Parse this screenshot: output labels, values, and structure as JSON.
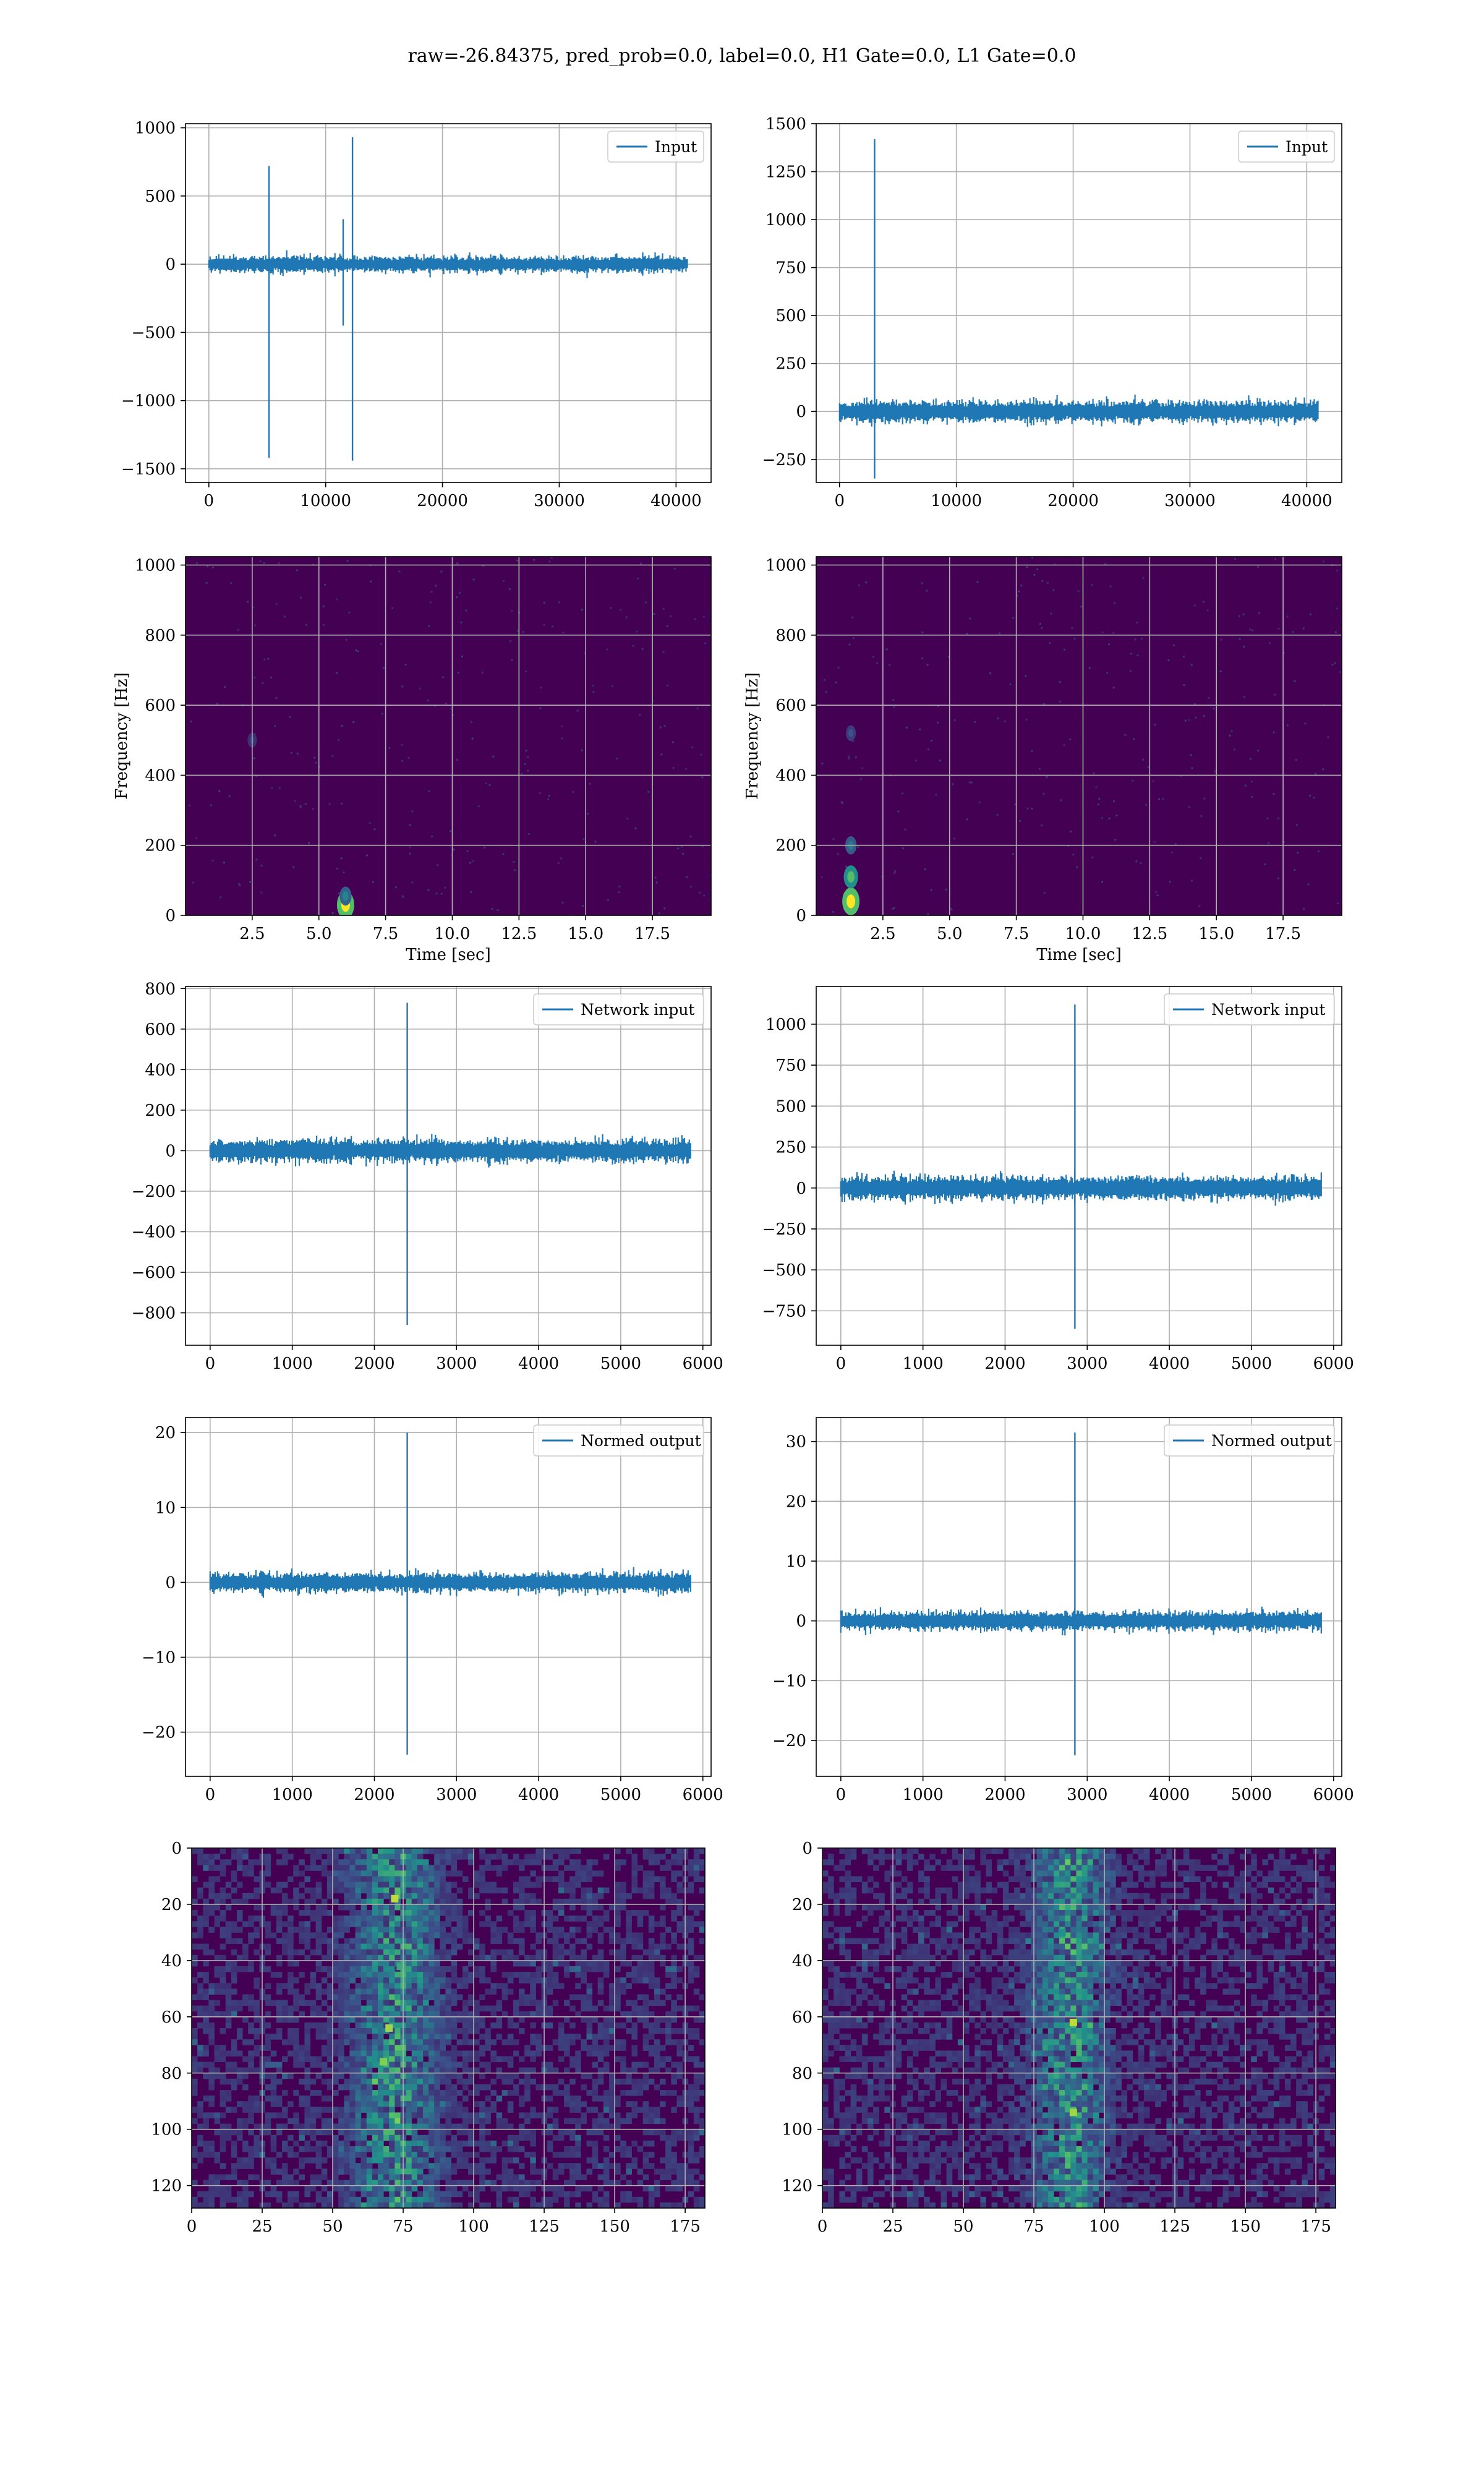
{
  "figure": {
    "suptitle": "raw=-26.84375, pred_prob=0.0, label=0.0, H1 Gate=0.0, L1 Gate=0.0"
  },
  "colors": {
    "line": "#1f77b4",
    "grid": "#b0b0b0",
    "viridis_low": "#440154",
    "viridis_high": "#fde725"
  },
  "chart_data": [
    {
      "id": "input-left",
      "type": "line",
      "legend": "Input",
      "legend_position": "top-right",
      "grid": true,
      "xlim": [
        -2000,
        43000
      ],
      "ylim": [
        -1600,
        1030
      ],
      "xticks": [
        "0",
        "10000",
        "20000",
        "30000",
        "40000"
      ],
      "yticks": [
        "1000",
        "500",
        "0",
        "−500",
        "−1000",
        "−1500"
      ],
      "x_range": [
        0,
        40960
      ],
      "baseline_amplitude": 60,
      "spikes": [
        {
          "x": 5150,
          "min": -1420,
          "max": 720
        },
        {
          "x": 12300,
          "min": -1440,
          "max": 930
        },
        {
          "x": 11500,
          "min": -450,
          "max": 330
        }
      ]
    },
    {
      "id": "input-right",
      "type": "line",
      "legend": "Input",
      "legend_position": "top-right",
      "grid": true,
      "xlim": [
        -2000,
        43000
      ],
      "ylim": [
        -370,
        1500
      ],
      "xticks": [
        "0",
        "10000",
        "20000",
        "30000",
        "40000"
      ],
      "yticks": [
        "1500",
        "1250",
        "1000",
        "750",
        "500",
        "250",
        "0",
        "−250"
      ],
      "x_range": [
        0,
        40960
      ],
      "baseline_amplitude": 55,
      "spikes": [
        {
          "x": 3000,
          "min": -350,
          "max": 1420
        }
      ]
    },
    {
      "id": "spectrogram-left",
      "type": "heatmap",
      "grid": true,
      "xlabel": "Time [sec]",
      "ylabel": "Frequency [Hz]",
      "xlim": [
        0,
        19.7
      ],
      "ylim": [
        0,
        1024
      ],
      "xticks": [
        "2.5",
        "5.0",
        "7.5",
        "10.0",
        "12.5",
        "15.0",
        "17.5"
      ],
      "yticks": [
        "1000",
        "800",
        "600",
        "400",
        "200",
        "0"
      ],
      "hotspots": [
        {
          "t": 6.0,
          "f": 30,
          "intensity": 1.0
        },
        {
          "t": 6.0,
          "f": 55,
          "intensity": 0.45
        },
        {
          "t": 2.5,
          "f": 500,
          "intensity": 0.2
        }
      ]
    },
    {
      "id": "spectrogram-right",
      "type": "heatmap",
      "grid": true,
      "xlabel": "Time [sec]",
      "ylabel": "Frequency [Hz]",
      "xlim": [
        0,
        19.7
      ],
      "ylim": [
        0,
        1024
      ],
      "xticks": [
        "2.5",
        "5.0",
        "7.5",
        "10.0",
        "12.5",
        "15.0",
        "17.5"
      ],
      "yticks": [
        "1000",
        "800",
        "600",
        "400",
        "200",
        "0"
      ],
      "hotspots": [
        {
          "t": 1.3,
          "f": 40,
          "intensity": 1.0
        },
        {
          "t": 1.3,
          "f": 110,
          "intensity": 0.7
        },
        {
          "t": 1.3,
          "f": 200,
          "intensity": 0.4
        },
        {
          "t": 1.3,
          "f": 520,
          "intensity": 0.25
        }
      ]
    },
    {
      "id": "network-input-left",
      "type": "line",
      "legend": "Network input",
      "legend_position": "top-right",
      "grid": true,
      "xlim": [
        -300,
        6100
      ],
      "ylim": [
        -960,
        810
      ],
      "xticks": [
        "0",
        "1000",
        "2000",
        "3000",
        "4000",
        "5000",
        "6000"
      ],
      "yticks": [
        "800",
        "600",
        "400",
        "200",
        "0",
        "−200",
        "−400",
        "−600",
        "−800"
      ],
      "x_range": [
        0,
        5850
      ],
      "baseline_amplitude": 55,
      "spikes": [
        {
          "x": 2400,
          "min": -860,
          "max": 730
        }
      ]
    },
    {
      "id": "network-input-right",
      "type": "line",
      "legend": "Network input",
      "legend_position": "top-right",
      "grid": true,
      "xlim": [
        -300,
        6100
      ],
      "ylim": [
        -960,
        1230
      ],
      "xticks": [
        "0",
        "1000",
        "2000",
        "3000",
        "4000",
        "5000",
        "6000"
      ],
      "yticks": [
        "1000",
        "750",
        "500",
        "250",
        "0",
        "−250",
        "−500",
        "−750"
      ],
      "x_range": [
        0,
        5850
      ],
      "baseline_amplitude": 70,
      "spikes": [
        {
          "x": 2850,
          "min": -860,
          "max": 1120
        }
      ]
    },
    {
      "id": "normed-output-left",
      "type": "line",
      "legend": "Normed output",
      "legend_position": "top-right",
      "grid": true,
      "xlim": [
        -300,
        6100
      ],
      "ylim": [
        -25.9,
        22.0
      ],
      "xticks": [
        "0",
        "1000",
        "2000",
        "3000",
        "4000",
        "5000",
        "6000"
      ],
      "yticks": [
        "20",
        "10",
        "0",
        "−10",
        "−20"
      ],
      "x_range": [
        0,
        5850
      ],
      "baseline_amplitude": 1.3,
      "spikes": [
        {
          "x": 2400,
          "min": -23,
          "max": 20
        }
      ]
    },
    {
      "id": "normed-output-right",
      "type": "line",
      "legend": "Normed output",
      "legend_position": "top-right",
      "grid": true,
      "xlim": [
        -300,
        6100
      ],
      "ylim": [
        -26.0,
        34.0
      ],
      "xticks": [
        "0",
        "1000",
        "2000",
        "3000",
        "4000",
        "5000",
        "6000"
      ],
      "yticks": [
        "30",
        "20",
        "10",
        "0",
        "−10",
        "−20"
      ],
      "x_range": [
        0,
        5850
      ],
      "baseline_amplitude": 1.6,
      "spikes": [
        {
          "x": 2850,
          "min": -22.5,
          "max": 31.5
        }
      ]
    },
    {
      "id": "feature-map-left",
      "type": "heatmap",
      "grid": true,
      "xlim": [
        0,
        182
      ],
      "ylim": [
        128,
        0
      ],
      "xticks": [
        "0",
        "25",
        "50",
        "75",
        "100",
        "125",
        "150",
        "175"
      ],
      "yticks": [
        "0",
        "20",
        "40",
        "60",
        "80",
        "100",
        "120"
      ],
      "band_center": 72,
      "band_width": 14,
      "hotspots": [
        {
          "x": 72,
          "y": 18,
          "intensity": 0.9
        },
        {
          "x": 70,
          "y": 64,
          "intensity": 0.85
        },
        {
          "x": 68,
          "y": 76,
          "intensity": 0.8
        },
        {
          "x": 74,
          "y": 42,
          "intensity": 0.6
        }
      ]
    },
    {
      "id": "feature-map-right",
      "type": "heatmap",
      "grid": true,
      "xlim": [
        0,
        182
      ],
      "ylim": [
        128,
        0
      ],
      "xticks": [
        "0",
        "25",
        "50",
        "75",
        "100",
        "125",
        "150",
        "175"
      ],
      "yticks": [
        "0",
        "20",
        "40",
        "60",
        "80",
        "100",
        "120"
      ],
      "band_center": 88,
      "band_width": 12,
      "hotspots": [
        {
          "x": 89,
          "y": 62,
          "intensity": 0.9
        },
        {
          "x": 89,
          "y": 94,
          "intensity": 0.85
        },
        {
          "x": 85,
          "y": 30,
          "intensity": 0.5
        }
      ]
    }
  ]
}
